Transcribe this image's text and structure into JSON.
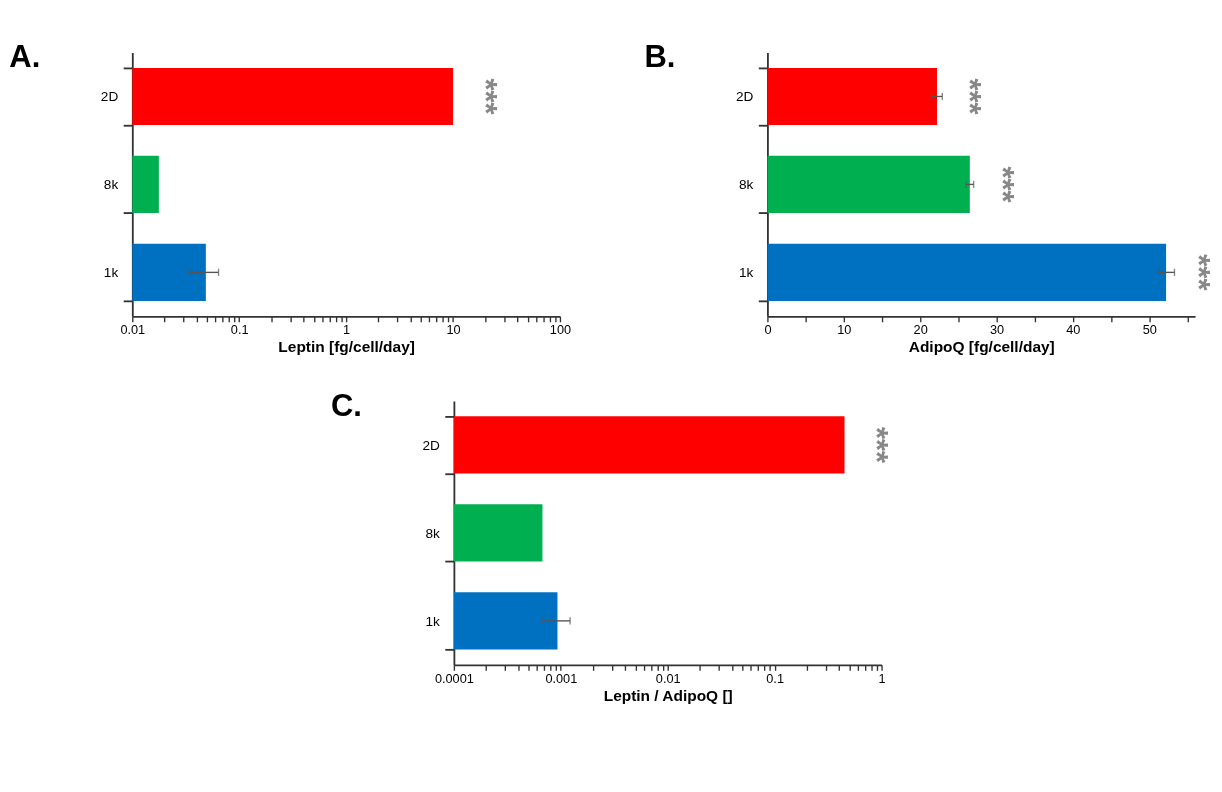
{
  "chart_data": [
    {
      "type": "bar",
      "orientation": "horizontal",
      "title": "A.",
      "xlabel": "Leptin [fg/cell/day]",
      "log": "x",
      "categories": [
        "2D",
        "8k",
        "1k"
      ],
      "colors": [
        "#ff0000",
        "#00b050",
        "#0070c0"
      ],
      "values": [
        10,
        0.0177,
        0.0487
      ],
      "errors": [
        null,
        null,
        [
          0.034,
          0.064
        ]
      ],
      "xlim": [
        0.01,
        100
      ],
      "xticks": [
        0.01,
        {
          "value": 0.02,
          "label": null
        },
        {
          "value": 0.03,
          "label": null
        },
        {
          "value": 0.04,
          "label": null
        },
        {
          "value": 0.05,
          "label": null
        },
        {
          "value": 0.06,
          "label": null
        },
        {
          "value": 0.07,
          "label": null
        },
        {
          "value": 0.08,
          "label": null
        },
        {
          "value": 0.09,
          "label": null
        },
        0.1,
        {
          "value": 0.2,
          "label": null
        },
        {
          "value": 0.3,
          "label": null
        },
        {
          "value": 0.4,
          "label": null
        },
        {
          "value": 0.5,
          "label": null
        },
        {
          "value": 0.6,
          "label": null
        },
        {
          "value": 0.7,
          "label": null
        },
        {
          "value": 0.8,
          "label": null
        },
        {
          "value": 0.9,
          "label": null
        },
        1,
        {
          "value": 2,
          "label": null
        },
        {
          "value": 3,
          "label": null
        },
        {
          "value": 4,
          "label": null
        },
        {
          "value": 5,
          "label": null
        },
        {
          "value": 6,
          "label": null
        },
        {
          "value": 7,
          "label": null
        },
        {
          "value": 8,
          "label": null
        },
        {
          "value": 9,
          "label": null
        },
        10,
        {
          "value": 20,
          "label": null
        },
        {
          "value": 30,
          "label": null
        },
        {
          "value": 40,
          "label": null
        },
        {
          "value": 50,
          "label": null
        },
        {
          "value": 60,
          "label": null
        },
        {
          "value": 70,
          "label": null
        },
        {
          "value": 80,
          "label": null
        },
        {
          "value": 90,
          "label": null
        },
        100
      ],
      "annotations": [
        "***"
      ]
    },
    {
      "type": "bar",
      "orientation": "horizontal",
      "title": "B.",
      "xlabel": "AdipoQ [fg/cell/day]",
      "categories": [
        "2D",
        "8k",
        "1k"
      ],
      "colors": [
        "#ff0000",
        "#00b050",
        "#0070c0"
      ],
      "values": [
        22.2,
        26.5,
        52.2
      ],
      "errors": [
        0.7,
        0.5,
        1.1
      ],
      "xlim": [
        0,
        56
      ],
      "xticks": [
        0,
        {
          "value": 5,
          "label": null
        },
        10,
        {
          "value": 15,
          "label": null
        },
        20,
        {
          "value": 25,
          "label": null
        },
        30,
        {
          "value": 35,
          "label": null
        },
        40,
        {
          "value": 45,
          "label": null
        },
        50,
        {
          "value": 55,
          "label": null
        }
      ],
      "annotations": [
        "***",
        "***",
        "***"
      ]
    },
    {
      "type": "bar",
      "orientation": "horizontal",
      "title": "C.",
      "xlabel": "Leptin / AdipoQ []",
      "log": "x",
      "categories": [
        "2D",
        "8k",
        "1k"
      ],
      "colors": [
        "#ff0000",
        "#00b050",
        "#0070c0"
      ],
      "values": [
        0.45,
        0.000673,
        0.00093
      ],
      "errors": [
        null,
        null,
        [
          0.000665,
          0.00122
        ]
      ],
      "xlim": [
        0.0001,
        1
      ],
      "xticks": [
        0.0001,
        {
          "value": 0.0002,
          "label": null
        },
        {
          "value": 0.0003,
          "label": null
        },
        {
          "value": 0.0004,
          "label": null
        },
        {
          "value": 0.0005,
          "label": null
        },
        {
          "value": 0.0006,
          "label": null
        },
        {
          "value": 0.0007,
          "label": null
        },
        {
          "value": 0.0008,
          "label": null
        },
        {
          "value": 0.0009,
          "label": null
        },
        0.001,
        {
          "value": 0.002,
          "label": null
        },
        {
          "value": 0.003,
          "label": null
        },
        {
          "value": 0.004,
          "label": null
        },
        {
          "value": 0.005,
          "label": null
        },
        {
          "value": 0.006,
          "label": null
        },
        {
          "value": 0.007,
          "label": null
        },
        {
          "value": 0.008,
          "label": null
        },
        {
          "value": 0.009,
          "label": null
        },
        0.01,
        {
          "value": 0.02,
          "label": null
        },
        {
          "value": 0.03,
          "label": null
        },
        {
          "value": 0.04,
          "label": null
        },
        {
          "value": 0.05,
          "label": null
        },
        {
          "value": 0.06,
          "label": null
        },
        {
          "value": 0.07,
          "label": null
        },
        {
          "value": 0.08,
          "label": null
        },
        {
          "value": 0.09,
          "label": null
        },
        0.1,
        {
          "value": 0.2,
          "label": null
        },
        {
          "value": 0.3,
          "label": null
        },
        {
          "value": 0.4,
          "label": null
        },
        {
          "value": 0.5,
          "label": null
        },
        {
          "value": 0.6,
          "label": null
        },
        {
          "value": 0.7,
          "label": null
        },
        {
          "value": 0.8,
          "label": null
        },
        {
          "value": 0.9,
          "label": null
        },
        1
      ],
      "annotations": [
        "***"
      ]
    }
  ]
}
